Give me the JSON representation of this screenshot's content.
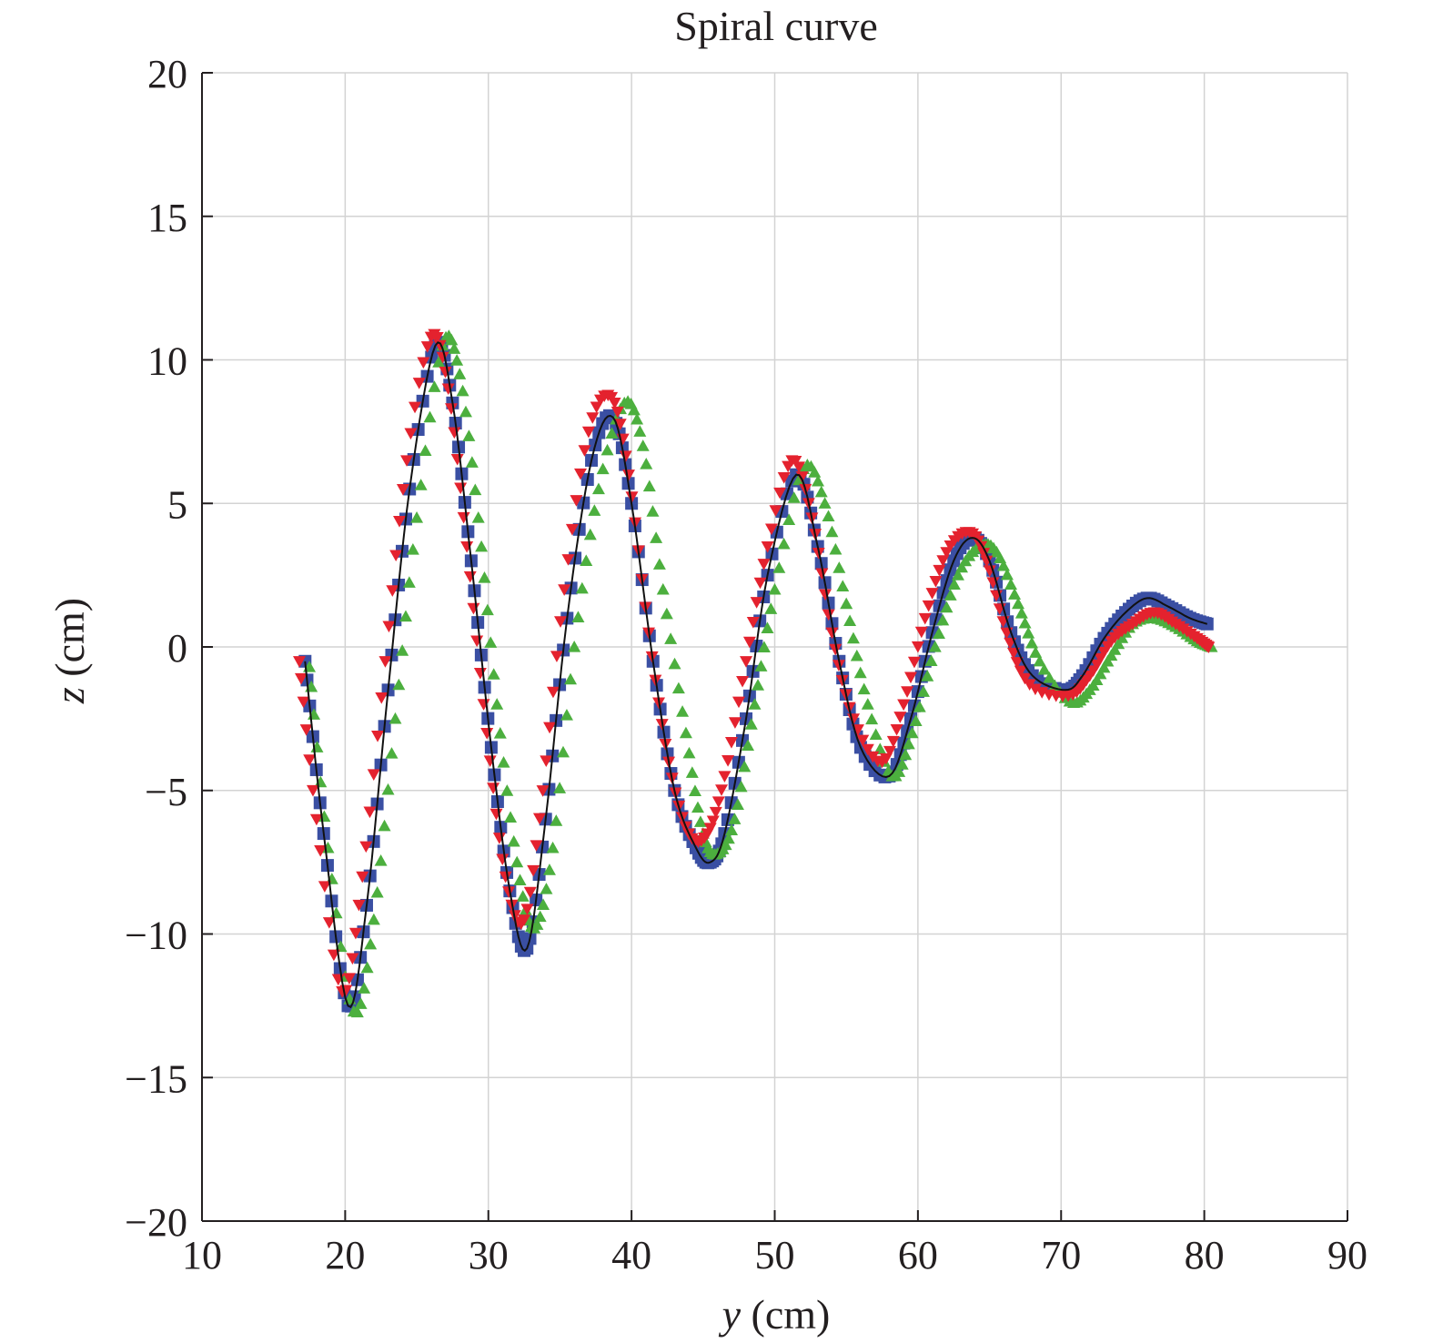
{
  "chart_data": {
    "type": "line",
    "title": "Spiral curve",
    "xlabel_var": "y",
    "xlabel_unit": " (cm)",
    "ylabel_var": "z",
    "ylabel_unit": " (cm)",
    "xlim": [
      10,
      90
    ],
    "ylim": [
      -20,
      20
    ],
    "xticks": [
      10,
      20,
      30,
      40,
      50,
      60,
      70,
      80,
      90
    ],
    "xtick_labels": [
      "10",
      "20",
      "30",
      "40",
      "50",
      "60",
      "70",
      "80",
      "90"
    ],
    "yticks": [
      20,
      15,
      10,
      5,
      0,
      -5,
      -10,
      -15,
      -20
    ],
    "ytick_labels": [
      "20",
      "15",
      "10",
      "5",
      "0",
      "−5",
      "−10",
      "−15",
      "−20"
    ],
    "grid": true,
    "series": [
      {
        "color": "#3a4fa3",
        "marker": "square",
        "x": [
          17.2,
          18.5,
          20.2,
          21.5,
          23.0,
          24.5,
          26.3,
          27.5,
          28.8,
          30.2,
          31.5,
          32.7,
          34.0,
          35.5,
          37.2,
          38.7,
          40.0,
          41.5,
          43.0,
          44.5,
          45.5,
          46.5,
          48.0,
          49.5,
          51.5,
          53.0,
          54.5,
          56.0,
          58.0,
          59.5,
          61.0,
          62.5,
          63.8,
          65.0,
          66.5,
          68.0,
          70.3,
          71.5,
          73.0,
          74.5,
          76.0,
          77.5,
          79.0,
          80.2
        ],
        "y": [
          -0.5,
          -6.5,
          -12.5,
          -9.0,
          -1.5,
          5.5,
          10.5,
          8.5,
          3.0,
          -3.5,
          -8.5,
          -10.5,
          -6.0,
          1.0,
          6.5,
          8.0,
          5.0,
          -0.5,
          -5.0,
          -7.0,
          -7.5,
          -6.5,
          -2.5,
          2.5,
          6.0,
          3.5,
          -0.5,
          -3.5,
          -4.5,
          -2.5,
          0.5,
          3.0,
          3.8,
          3.0,
          0.5,
          -1.0,
          -1.5,
          -1.0,
          0.3,
          1.2,
          1.7,
          1.4,
          1.0,
          0.8
        ]
      },
      {
        "color": "#e4222e",
        "marker": "triangle-down",
        "x": [
          16.8,
          18.0,
          19.8,
          21.2,
          22.8,
          24.3,
          26.0,
          27.2,
          28.5,
          29.9,
          31.2,
          32.5,
          33.8,
          35.3,
          37.0,
          38.6,
          39.8,
          41.2,
          42.6,
          44.0,
          45.3,
          46.5,
          48.0,
          49.5,
          51.2,
          52.6,
          54.0,
          55.5,
          57.5,
          59.0,
          60.5,
          62.0,
          63.6,
          64.8,
          66.2,
          67.8,
          70.5,
          72.0,
          73.5,
          75.0,
          76.5,
          78.0,
          79.5,
          80.3
        ],
        "y": [
          -0.5,
          -6.0,
          -12.0,
          -8.0,
          -0.5,
          6.5,
          10.8,
          9.0,
          3.5,
          -3.0,
          -8.0,
          -9.5,
          -5.0,
          2.0,
          7.5,
          8.7,
          6.0,
          0.5,
          -4.0,
          -6.5,
          -6.5,
          -4.5,
          -0.5,
          3.5,
          6.5,
          4.5,
          0.5,
          -2.5,
          -4.0,
          -2.0,
          1.0,
          3.3,
          4.0,
          3.0,
          0.5,
          -1.3,
          -1.7,
          -1.0,
          0.2,
          0.8,
          1.2,
          0.8,
          0.3,
          0.0
        ]
      },
      {
        "color": "#4caf3e",
        "marker": "triangle-up",
        "x": [
          17.5,
          18.8,
          20.6,
          22.0,
          23.5,
          25.0,
          26.8,
          28.0,
          29.3,
          30.6,
          32.0,
          33.2,
          34.5,
          36.0,
          37.7,
          39.5,
          40.8,
          42.2,
          43.8,
          45.0,
          46.0,
          47.2,
          48.6,
          50.0,
          52.0,
          53.5,
          55.0,
          56.5,
          58.2,
          59.6,
          61.2,
          62.8,
          64.3,
          65.5,
          67.0,
          68.5,
          70.6,
          72.0,
          73.5,
          75.0,
          76.5,
          78.0,
          79.5,
          80.5
        ],
        "y": [
          -0.7,
          -7.0,
          -12.7,
          -9.5,
          -2.5,
          4.5,
          10.5,
          9.5,
          4.5,
          -2.0,
          -7.5,
          -9.8,
          -7.0,
          0.0,
          5.5,
          8.5,
          7.0,
          2.0,
          -3.0,
          -6.5,
          -7.2,
          -6.0,
          -2.0,
          2.0,
          6.2,
          5.0,
          1.5,
          -2.0,
          -4.5,
          -3.0,
          0.0,
          2.5,
          3.5,
          3.3,
          1.5,
          -0.5,
          -1.9,
          -1.5,
          -0.3,
          0.8,
          1.0,
          0.7,
          0.2,
          0.0
        ]
      }
    ]
  }
}
